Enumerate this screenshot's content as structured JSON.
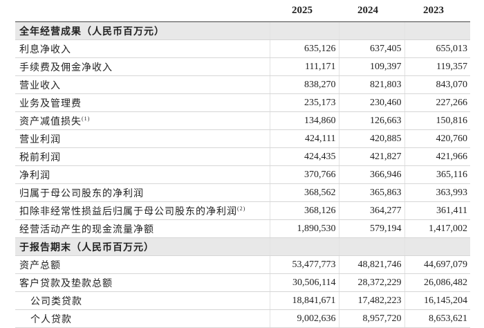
{
  "header": {
    "columns": [
      "2025",
      "2024",
      "2023"
    ]
  },
  "sections": [
    {
      "title": "全年经营成果（人民币百万元）",
      "rows": [
        {
          "label": "利息净收入",
          "values": [
            "635,126",
            "637,405",
            "655,013"
          ]
        },
        {
          "label": "手续费及佣金净收入",
          "values": [
            "111,171",
            "109,397",
            "119,357"
          ]
        },
        {
          "label": "营业收入",
          "values": [
            "838,270",
            "821,803",
            "843,070"
          ]
        },
        {
          "label": "业务及管理费",
          "values": [
            "235,173",
            "230,460",
            "227,266"
          ]
        },
        {
          "label": "资产减值损失",
          "note": "(1)",
          "values": [
            "134,860",
            "126,663",
            "150,816"
          ]
        },
        {
          "label": "营业利润",
          "values": [
            "424,111",
            "420,885",
            "420,760"
          ]
        },
        {
          "label": "税前利润",
          "values": [
            "424,435",
            "421,827",
            "421,966"
          ]
        },
        {
          "label": "净利润",
          "values": [
            "370,766",
            "366,946",
            "365,116"
          ]
        },
        {
          "label": "归属于母公司股东的净利润",
          "values": [
            "368,562",
            "365,863",
            "363,993"
          ]
        },
        {
          "label": "扣除非经常性损益后归属于母公司股东的净利润",
          "note": "(2)",
          "values": [
            "368,126",
            "364,277",
            "361,411"
          ]
        },
        {
          "label": "经营活动产生的现金流量净额",
          "values": [
            "1,890,530",
            "579,194",
            "1,417,002"
          ]
        }
      ]
    },
    {
      "title": "于报告期末（人民币百万元）",
      "rows": [
        {
          "label": "资产总额",
          "values": [
            "53,477,773",
            "48,821,746",
            "44,697,079"
          ]
        },
        {
          "label": "客户贷款及垫款总额",
          "values": [
            "30,506,114",
            "28,372,229",
            "26,086,482"
          ]
        },
        {
          "label": "公司类贷款",
          "values": [
            "18,841,671",
            "17,482,223",
            "16,145,204"
          ]
        },
        {
          "label": "个人贷款",
          "values": [
            "9,002,636",
            "8,957,720",
            "8,653,621"
          ]
        }
      ]
    }
  ]
}
